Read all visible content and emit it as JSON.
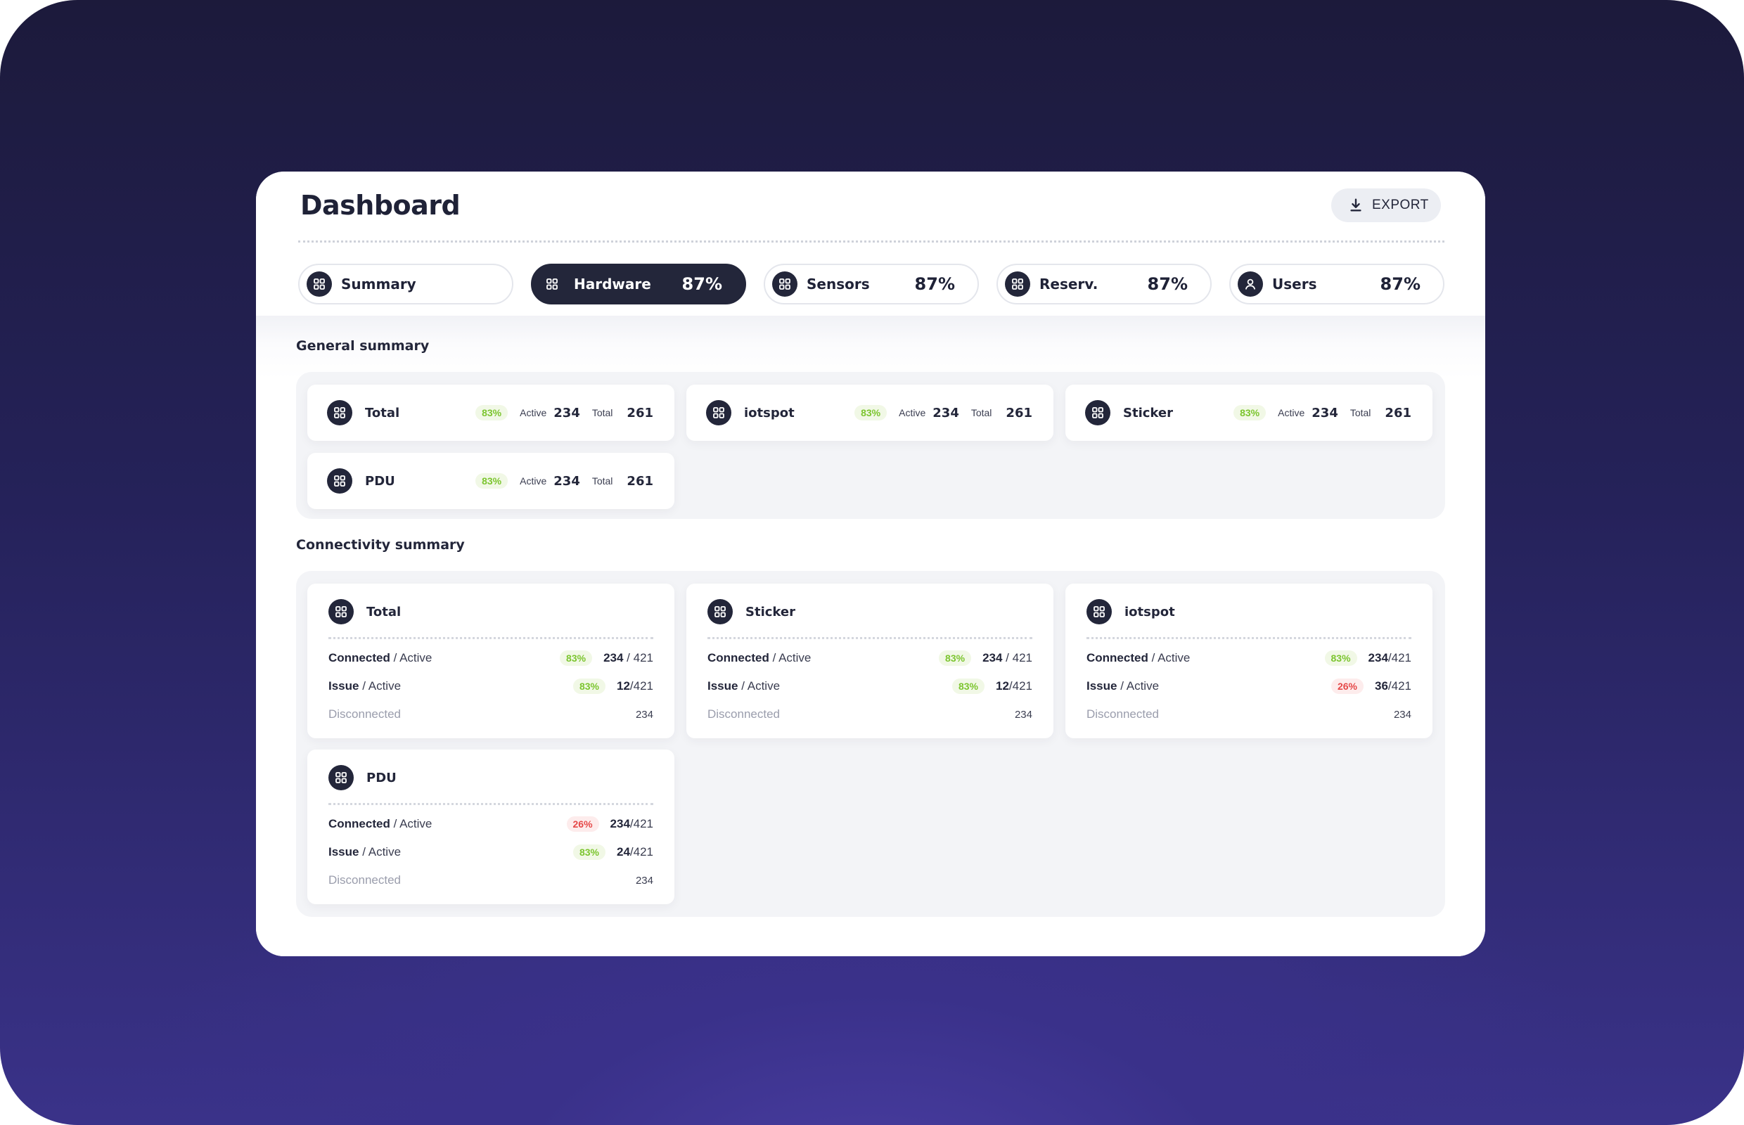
{
  "header": {
    "title": "Dashboard",
    "export_label": "EXPORT"
  },
  "tabs": [
    {
      "label": "Summary",
      "pct": "",
      "icon": "grid-icon",
      "active": false
    },
    {
      "label": "Hardware",
      "pct": "87%",
      "icon": "grid-icon",
      "active": true
    },
    {
      "label": "Sensors",
      "pct": "87%",
      "icon": "grid-icon",
      "active": false
    },
    {
      "label": "Reserv.",
      "pct": "87%",
      "icon": "grid-icon",
      "active": false
    },
    {
      "label": "Users",
      "pct": "87%",
      "icon": "user-icon",
      "active": false
    }
  ],
  "general": {
    "title": "General summary",
    "cards": [
      {
        "name": "Total",
        "pct": "83%",
        "active_label": "Active",
        "active": "234",
        "total_label": "Total",
        "total": "261"
      },
      {
        "name": "iotspot",
        "pct": "83%",
        "active_label": "Active",
        "active": "234",
        "total_label": "Total",
        "total": "261"
      },
      {
        "name": "Sticker",
        "pct": "83%",
        "active_label": "Active",
        "active": "234",
        "total_label": "Total",
        "total": "261"
      },
      {
        "name": "PDU",
        "pct": "83%",
        "active_label": "Active",
        "active": "234",
        "total_label": "Total",
        "total": "261"
      }
    ]
  },
  "connectivity": {
    "title": "Connectivity summary",
    "cards": [
      {
        "name": "Total",
        "connected": {
          "label": "Connected",
          "sub": "/ Active",
          "pct": "83%",
          "status": "good",
          "value": "234",
          "total": " / 421"
        },
        "issue": {
          "label": "Issue",
          "sub": "/ Active",
          "pct": "83%",
          "status": "good",
          "value": "12",
          "total": "/421"
        },
        "disconnected": {
          "label": "Disconnected",
          "value": "234"
        }
      },
      {
        "name": "Sticker",
        "connected": {
          "label": "Connected",
          "sub": "/ Active",
          "pct": "83%",
          "status": "good",
          "value": "234",
          "total": " / 421"
        },
        "issue": {
          "label": "Issue",
          "sub": "/ Active",
          "pct": "83%",
          "status": "good",
          "value": "12",
          "total": "/421"
        },
        "disconnected": {
          "label": "Disconnected",
          "value": "234"
        }
      },
      {
        "name": "iotspot",
        "connected": {
          "label": "Connected",
          "sub": "/ Active",
          "pct": "83%",
          "status": "good",
          "value": "234",
          "total": "/421"
        },
        "issue": {
          "label": "Issue",
          "sub": "/ Active",
          "pct": "26%",
          "status": "bad",
          "value": "36",
          "total": "/421"
        },
        "disconnected": {
          "label": "Disconnected",
          "value": "234"
        }
      },
      {
        "name": "PDU",
        "connected": {
          "label": "Connected",
          "sub": "/ Active",
          "pct": "26%",
          "status": "bad",
          "value": "234",
          "total": "/421"
        },
        "issue": {
          "label": "Issue",
          "sub": "/ Active",
          "pct": "83%",
          "status": "good",
          "value": "24",
          "total": "/421"
        },
        "disconnected": {
          "label": "Disconnected",
          "value": "234"
        }
      }
    ]
  },
  "colors": {
    "primary": "#23263a",
    "good": "#7cc52f",
    "bad": "#e54848",
    "panel": "#f3f4f7"
  }
}
